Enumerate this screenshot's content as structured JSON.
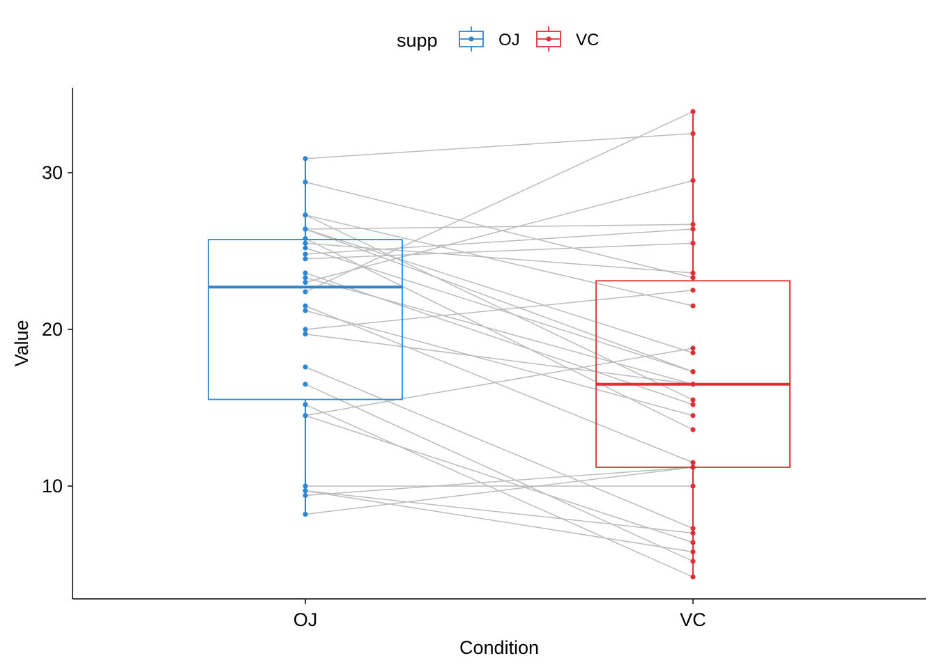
{
  "chart_data": {
    "type": "boxplot-paired",
    "xlabel": "Condition",
    "ylabel": "Value",
    "categories": [
      "OJ",
      "VC"
    ],
    "ylim": [
      3.5,
      35.2
    ],
    "yticks": [
      10,
      20,
      30
    ],
    "grid": false,
    "legend": {
      "title": "supp",
      "placement": "top",
      "entries": [
        {
          "label": "OJ",
          "color": "#2E86D1"
        },
        {
          "label": "VC",
          "color": "#DC3035"
        }
      ]
    },
    "pair_line_color": "#BBBBBB",
    "series": [
      {
        "name": "OJ",
        "color": "#2E86D1",
        "box": {
          "min": 8.2,
          "q1": 15.53,
          "median": 22.7,
          "q3": 25.73,
          "max": 30.9
        },
        "values": [
          15.2,
          21.5,
          17.6,
          9.7,
          14.5,
          10.0,
          8.2,
          9.4,
          16.5,
          9.7,
          19.7,
          23.3,
          23.6,
          26.4,
          20.0,
          25.2,
          25.8,
          21.2,
          14.5,
          27.3,
          25.5,
          26.4,
          22.4,
          24.5,
          24.8,
          30.9,
          26.4,
          27.3,
          29.4,
          23.0
        ]
      },
      {
        "name": "VC",
        "color": "#DC3035",
        "box": {
          "min": 4.2,
          "q1": 11.2,
          "median": 16.5,
          "q3": 23.1,
          "max": 33.9
        },
        "values": [
          4.2,
          11.5,
          7.3,
          5.8,
          6.4,
          10.0,
          11.2,
          11.2,
          5.2,
          7.0,
          16.5,
          16.5,
          15.2,
          17.3,
          22.5,
          17.3,
          13.6,
          14.5,
          18.8,
          15.5,
          23.6,
          18.5,
          33.9,
          25.5,
          26.4,
          32.5,
          26.7,
          21.5,
          23.3,
          29.5
        ]
      }
    ]
  }
}
